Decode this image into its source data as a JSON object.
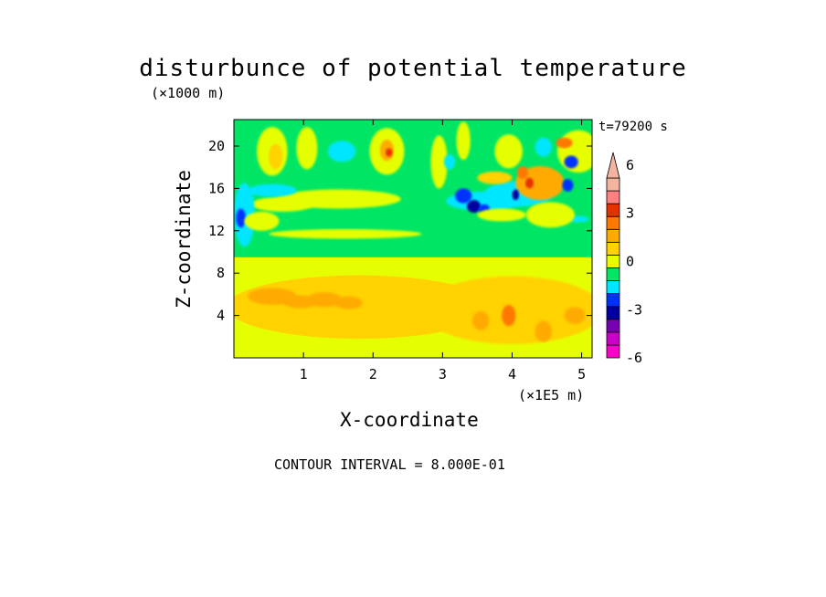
{
  "chart_data": {
    "type": "heatmap",
    "title": "disturbunce of potential temperature",
    "time_label": "t=79200 s",
    "y_unit": "(×1000 m)",
    "x_unit": "(×1E5 m)",
    "xlabel": "X-coordinate",
    "ylabel": "Z-coordinate",
    "contour_interval_text": "CONTOUR INTERVAL = 8.000E-01",
    "xlim": [
      0,
      5.15
    ],
    "ylim": [
      0,
      22.5
    ],
    "x_ticks": [
      {
        "value": 1,
        "label": "1"
      },
      {
        "value": 2,
        "label": "2"
      },
      {
        "value": 3,
        "label": "3"
      },
      {
        "value": 4,
        "label": "4"
      },
      {
        "value": 5,
        "label": "5"
      }
    ],
    "y_ticks": [
      {
        "value": 4,
        "label": "4"
      },
      {
        "value": 8,
        "label": "8"
      },
      {
        "value": 12,
        "label": "12"
      },
      {
        "value": 16,
        "label": "16"
      },
      {
        "value": 20,
        "label": "20"
      }
    ],
    "colorbar": {
      "level_labels": [
        {
          "value": 6,
          "label": "6"
        },
        {
          "value": 3,
          "label": "3"
        },
        {
          "value": 0,
          "label": "0"
        },
        {
          "value": -3,
          "label": "-3"
        },
        {
          "value": -6,
          "label": "-6"
        }
      ],
      "bands": [
        {
          "color": "#ff00c8"
        },
        {
          "color": "#c800c8"
        },
        {
          "color": "#7800b4"
        },
        {
          "color": "#0000a0"
        },
        {
          "color": "#0032ff"
        },
        {
          "color": "#00e6ff"
        },
        {
          "color": "#00e664"
        },
        {
          "color": "#e6ff00"
        },
        {
          "color": "#ffd200"
        },
        {
          "color": "#ffaa00"
        },
        {
          "color": "#ff7800"
        },
        {
          "color": "#e63200"
        },
        {
          "color": "#ff8080"
        },
        {
          "color": "#f4b4a0"
        }
      ]
    },
    "field_regions": [
      {
        "kind": "rect",
        "x0": 0,
        "x1": 5.15,
        "y0": 0,
        "y1": 22.5,
        "color": "#00e664"
      },
      {
        "kind": "rect",
        "x0": 0,
        "x1": 5.15,
        "y0": 0,
        "y1": 9.5,
        "color": "#e6ff00"
      },
      {
        "kind": "ellipse",
        "cx": 1.8,
        "cy": 4.8,
        "rx": 1.9,
        "ry": 3.0,
        "color": "#ffd200"
      },
      {
        "kind": "ellipse",
        "cx": 4.0,
        "cy": 4.5,
        "rx": 1.3,
        "ry": 3.2,
        "color": "#ffd200"
      },
      {
        "kind": "ellipse",
        "cx": 0.55,
        "cy": 5.8,
        "rx": 0.35,
        "ry": 0.8,
        "color": "#ffaa00"
      },
      {
        "kind": "ellipse",
        "cx": 0.95,
        "cy": 5.3,
        "rx": 0.25,
        "ry": 0.6,
        "color": "#ffaa00"
      },
      {
        "kind": "ellipse",
        "cx": 1.3,
        "cy": 5.5,
        "rx": 0.25,
        "ry": 0.7,
        "color": "#ffaa00"
      },
      {
        "kind": "ellipse",
        "cx": 1.65,
        "cy": 5.2,
        "rx": 0.2,
        "ry": 0.6,
        "color": "#ffaa00"
      },
      {
        "kind": "ellipse",
        "cx": 3.55,
        "cy": 3.5,
        "rx": 0.12,
        "ry": 0.9,
        "color": "#ffaa00"
      },
      {
        "kind": "ellipse",
        "cx": 3.95,
        "cy": 4.0,
        "rx": 0.1,
        "ry": 1.0,
        "color": "#ff7800"
      },
      {
        "kind": "ellipse",
        "cx": 4.45,
        "cy": 2.5,
        "rx": 0.12,
        "ry": 1.0,
        "color": "#ffaa00"
      },
      {
        "kind": "ellipse",
        "cx": 4.9,
        "cy": 4.0,
        "rx": 0.15,
        "ry": 0.8,
        "color": "#ffaa00"
      },
      {
        "kind": "ellipse",
        "cx": 1.5,
        "cy": 15.0,
        "rx": 0.9,
        "ry": 0.9,
        "color": "#e6ff00"
      },
      {
        "kind": "ellipse",
        "cx": 0.7,
        "cy": 14.5,
        "rx": 0.45,
        "ry": 0.7,
        "color": "#e6ff00"
      },
      {
        "kind": "ellipse",
        "cx": 1.6,
        "cy": 11.7,
        "rx": 1.1,
        "ry": 0.45,
        "color": "#e6ff00"
      },
      {
        "kind": "ellipse",
        "cx": 0.15,
        "cy": 13.5,
        "rx": 0.15,
        "ry": 3.0,
        "color": "#00e6ff"
      },
      {
        "kind": "ellipse",
        "cx": 0.1,
        "cy": 13.2,
        "rx": 0.07,
        "ry": 0.9,
        "color": "#0032ff"
      },
      {
        "kind": "ellipse",
        "cx": 0.55,
        "cy": 15.8,
        "rx": 0.35,
        "ry": 0.6,
        "color": "#00e6ff"
      },
      {
        "kind": "ellipse",
        "cx": 0.55,
        "cy": 19.5,
        "rx": 0.22,
        "ry": 2.3,
        "color": "#e6ff00"
      },
      {
        "kind": "ellipse",
        "cx": 0.6,
        "cy": 19.0,
        "rx": 0.1,
        "ry": 1.2,
        "color": "#ffd200"
      },
      {
        "kind": "ellipse",
        "cx": 1.05,
        "cy": 19.8,
        "rx": 0.15,
        "ry": 2.0,
        "color": "#e6ff00"
      },
      {
        "kind": "ellipse",
        "cx": 1.55,
        "cy": 19.5,
        "rx": 0.2,
        "ry": 1.0,
        "color": "#00e6ff"
      },
      {
        "kind": "ellipse",
        "cx": 2.2,
        "cy": 19.5,
        "rx": 0.25,
        "ry": 2.2,
        "color": "#e6ff00"
      },
      {
        "kind": "ellipse",
        "cx": 2.2,
        "cy": 19.6,
        "rx": 0.1,
        "ry": 1.0,
        "color": "#ffaa00"
      },
      {
        "kind": "ellipse",
        "cx": 2.23,
        "cy": 19.4,
        "rx": 0.05,
        "ry": 0.4,
        "color": "#e63200"
      },
      {
        "kind": "ellipse",
        "cx": 2.95,
        "cy": 18.5,
        "rx": 0.12,
        "ry": 2.5,
        "color": "#e6ff00"
      },
      {
        "kind": "ellipse",
        "cx": 3.3,
        "cy": 20.5,
        "rx": 0.1,
        "ry": 1.8,
        "color": "#e6ff00"
      },
      {
        "kind": "ellipse",
        "cx": 3.1,
        "cy": 18.5,
        "rx": 0.08,
        "ry": 0.7,
        "color": "#00e6ff"
      },
      {
        "kind": "ellipse",
        "cx": 3.6,
        "cy": 14.8,
        "rx": 0.55,
        "ry": 0.9,
        "color": "#00e6ff"
      },
      {
        "kind": "ellipse",
        "cx": 3.3,
        "cy": 15.3,
        "rx": 0.12,
        "ry": 0.7,
        "color": "#0032ff"
      },
      {
        "kind": "ellipse",
        "cx": 3.45,
        "cy": 14.3,
        "rx": 0.1,
        "ry": 0.6,
        "color": "#0000a0"
      },
      {
        "kind": "ellipse",
        "cx": 3.6,
        "cy": 14.0,
        "rx": 0.08,
        "ry": 0.5,
        "color": "#0032ff"
      },
      {
        "kind": "ellipse",
        "cx": 4.1,
        "cy": 15.5,
        "rx": 0.5,
        "ry": 1.2,
        "color": "#00e6ff"
      },
      {
        "kind": "ellipse",
        "cx": 4.4,
        "cy": 16.5,
        "rx": 0.35,
        "ry": 1.6,
        "color": "#ffaa00"
      },
      {
        "kind": "ellipse",
        "cx": 4.15,
        "cy": 17.5,
        "rx": 0.08,
        "ry": 0.6,
        "color": "#ff7800"
      },
      {
        "kind": "ellipse",
        "cx": 4.25,
        "cy": 16.5,
        "rx": 0.06,
        "ry": 0.5,
        "color": "#e63200"
      },
      {
        "kind": "ellipse",
        "cx": 4.05,
        "cy": 15.4,
        "rx": 0.05,
        "ry": 0.5,
        "color": "#0000a0"
      },
      {
        "kind": "ellipse",
        "cx": 3.75,
        "cy": 17.0,
        "rx": 0.25,
        "ry": 0.6,
        "color": "#ffd200"
      },
      {
        "kind": "ellipse",
        "cx": 3.95,
        "cy": 19.5,
        "rx": 0.2,
        "ry": 1.6,
        "color": "#e6ff00"
      },
      {
        "kind": "ellipse",
        "cx": 4.95,
        "cy": 19.5,
        "rx": 0.3,
        "ry": 2.0,
        "color": "#e6ff00"
      },
      {
        "kind": "ellipse",
        "cx": 4.85,
        "cy": 18.5,
        "rx": 0.1,
        "ry": 0.6,
        "color": "#0032ff"
      },
      {
        "kind": "ellipse",
        "cx": 4.8,
        "cy": 16.3,
        "rx": 0.08,
        "ry": 0.6,
        "color": "#0032ff"
      },
      {
        "kind": "ellipse",
        "cx": 4.95,
        "cy": 13.1,
        "rx": 0.15,
        "ry": 0.3,
        "color": "#00e6ff"
      },
      {
        "kind": "ellipse",
        "cx": 4.55,
        "cy": 13.5,
        "rx": 0.35,
        "ry": 1.2,
        "color": "#e6ff00"
      },
      {
        "kind": "ellipse",
        "cx": 4.75,
        "cy": 20.3,
        "rx": 0.12,
        "ry": 0.5,
        "color": "#ff7800"
      },
      {
        "kind": "ellipse",
        "cx": 3.85,
        "cy": 13.5,
        "rx": 0.35,
        "ry": 0.6,
        "color": "#e6ff00"
      },
      {
        "kind": "ellipse",
        "cx": 4.45,
        "cy": 19.9,
        "rx": 0.12,
        "ry": 0.9,
        "color": "#00e6ff"
      },
      {
        "kind": "ellipse",
        "cx": 0.4,
        "cy": 12.9,
        "rx": 0.25,
        "ry": 0.9,
        "color": "#e6ff00"
      }
    ]
  }
}
